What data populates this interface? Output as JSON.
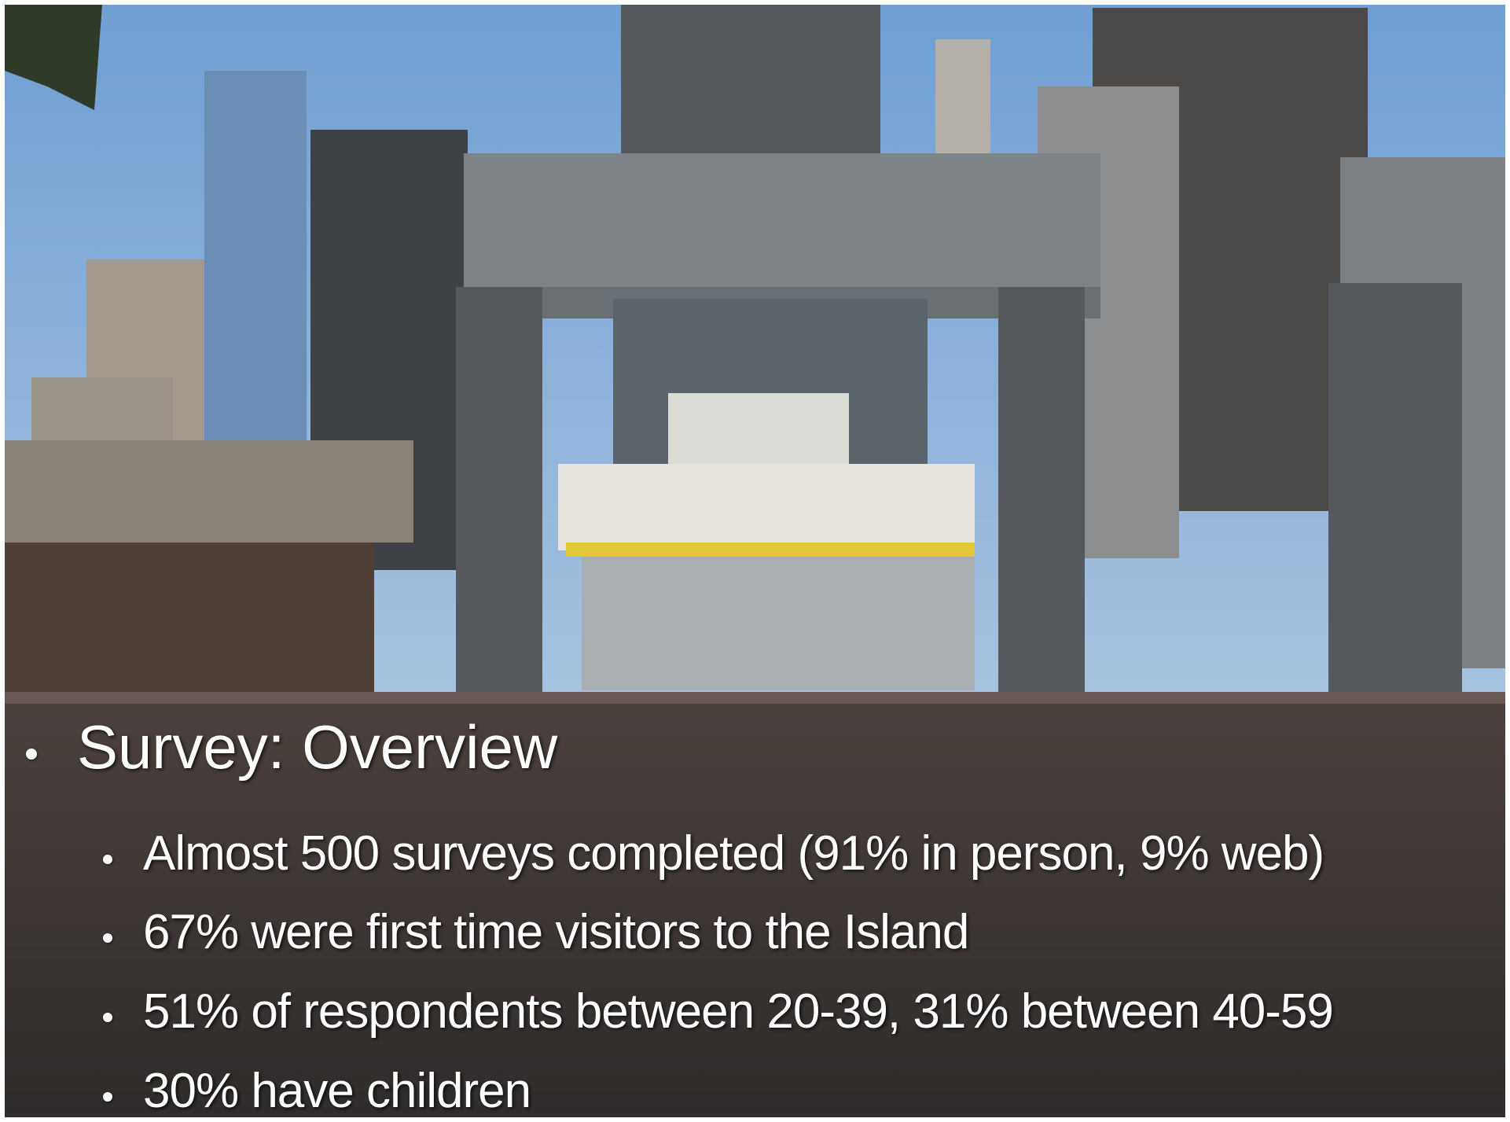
{
  "title": "Survey: Overview",
  "bullets": [
    "Almost 500 surveys completed (91% in person, 9% web)",
    "67% were first time visitors to the Island",
    "51% of respondents between 20-39, 31% between 40-59",
    "30% have children"
  ]
}
